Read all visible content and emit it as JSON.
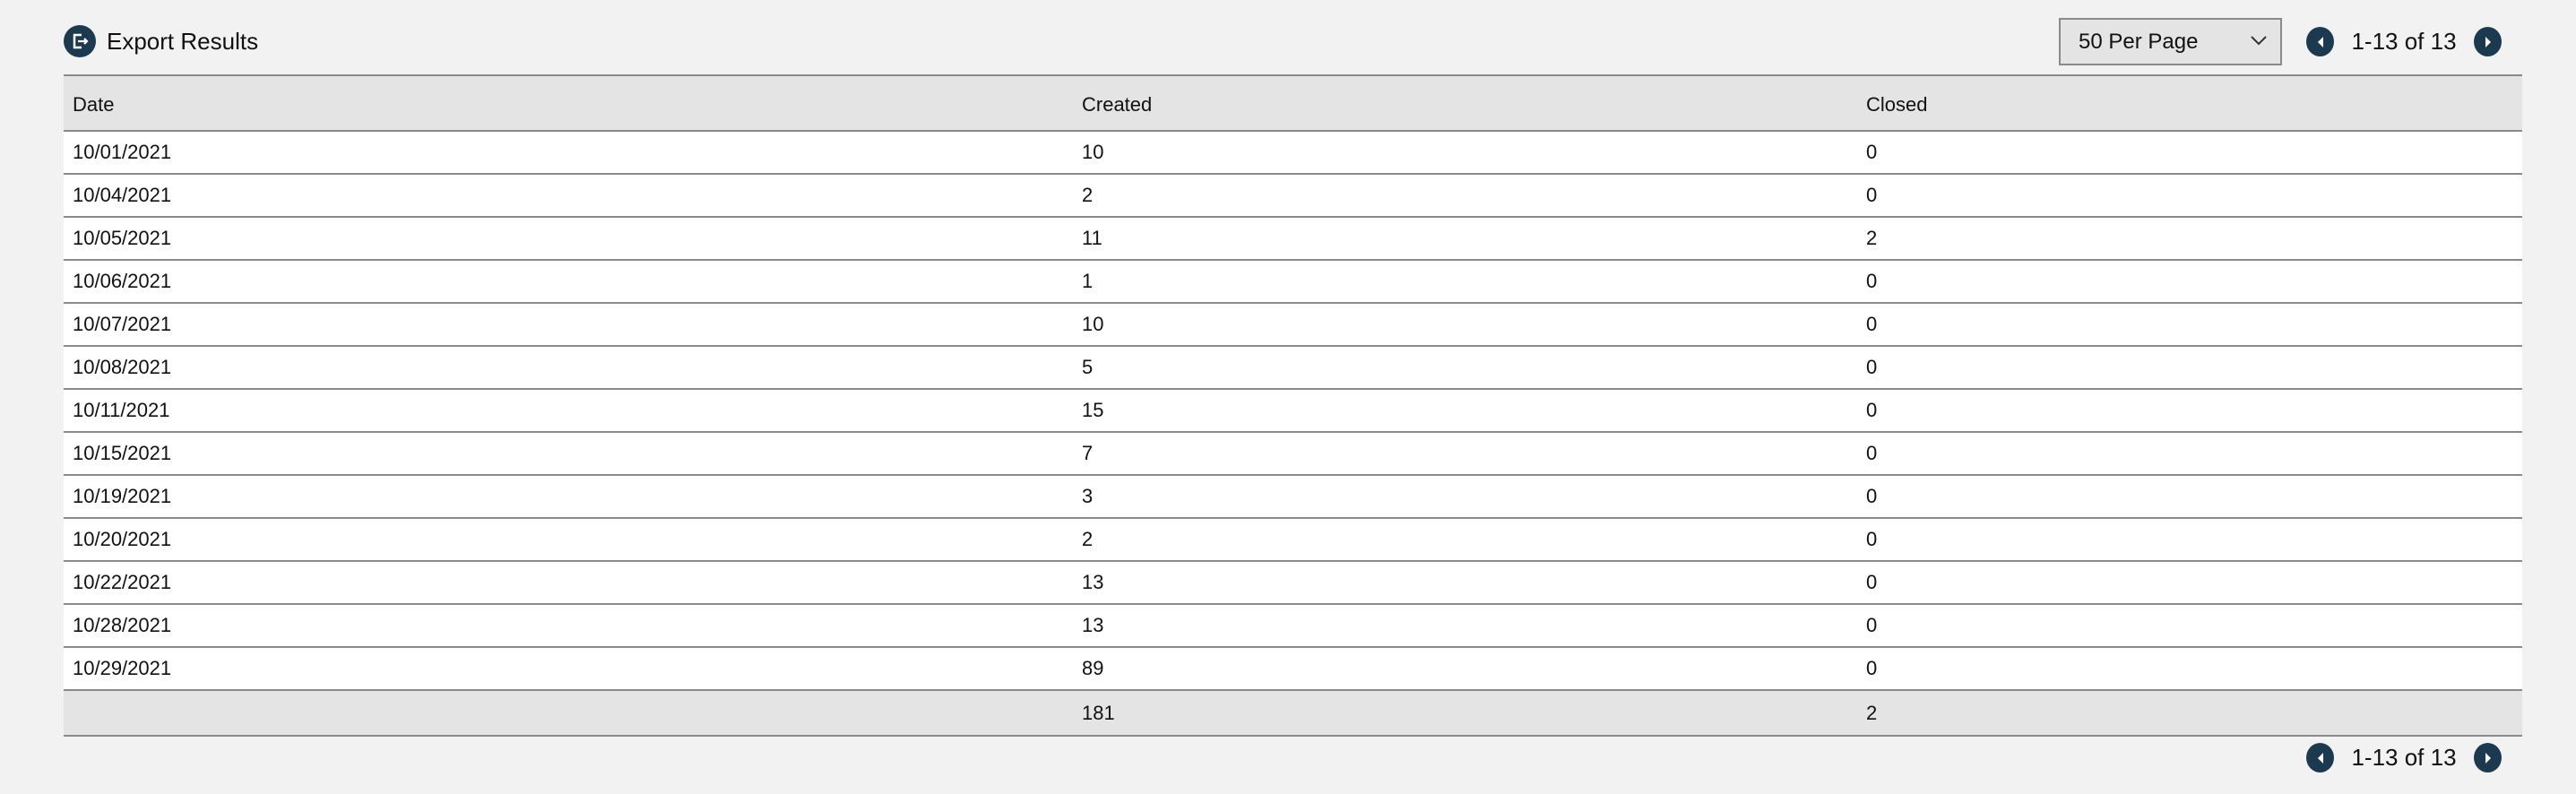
{
  "toolbar": {
    "export_label": "Export Results",
    "export_icon": "export-icon",
    "per_page": "50 Per Page",
    "pagination": "1-13 of 13"
  },
  "table": {
    "headers": [
      "Date",
      "Created",
      "Closed"
    ],
    "rows": [
      [
        "10/01/2021",
        "10",
        "0"
      ],
      [
        "10/04/2021",
        "2",
        "0"
      ],
      [
        "10/05/2021",
        "11",
        "2"
      ],
      [
        "10/06/2021",
        "1",
        "0"
      ],
      [
        "10/07/2021",
        "10",
        "0"
      ],
      [
        "10/08/2021",
        "5",
        "0"
      ],
      [
        "10/11/2021",
        "15",
        "0"
      ],
      [
        "10/15/2021",
        "7",
        "0"
      ],
      [
        "10/19/2021",
        "3",
        "0"
      ],
      [
        "10/20/2021",
        "2",
        "0"
      ],
      [
        "10/22/2021",
        "13",
        "0"
      ],
      [
        "10/28/2021",
        "13",
        "0"
      ],
      [
        "10/29/2021",
        "89",
        "0"
      ]
    ],
    "totals": [
      "",
      "181",
      "2"
    ]
  },
  "footer": {
    "pagination": "1-13 of 13"
  },
  "colors": {
    "accent": "#1c3a4f",
    "header_bg": "#e4e4e4",
    "page_bg": "#f2f2f2"
  }
}
